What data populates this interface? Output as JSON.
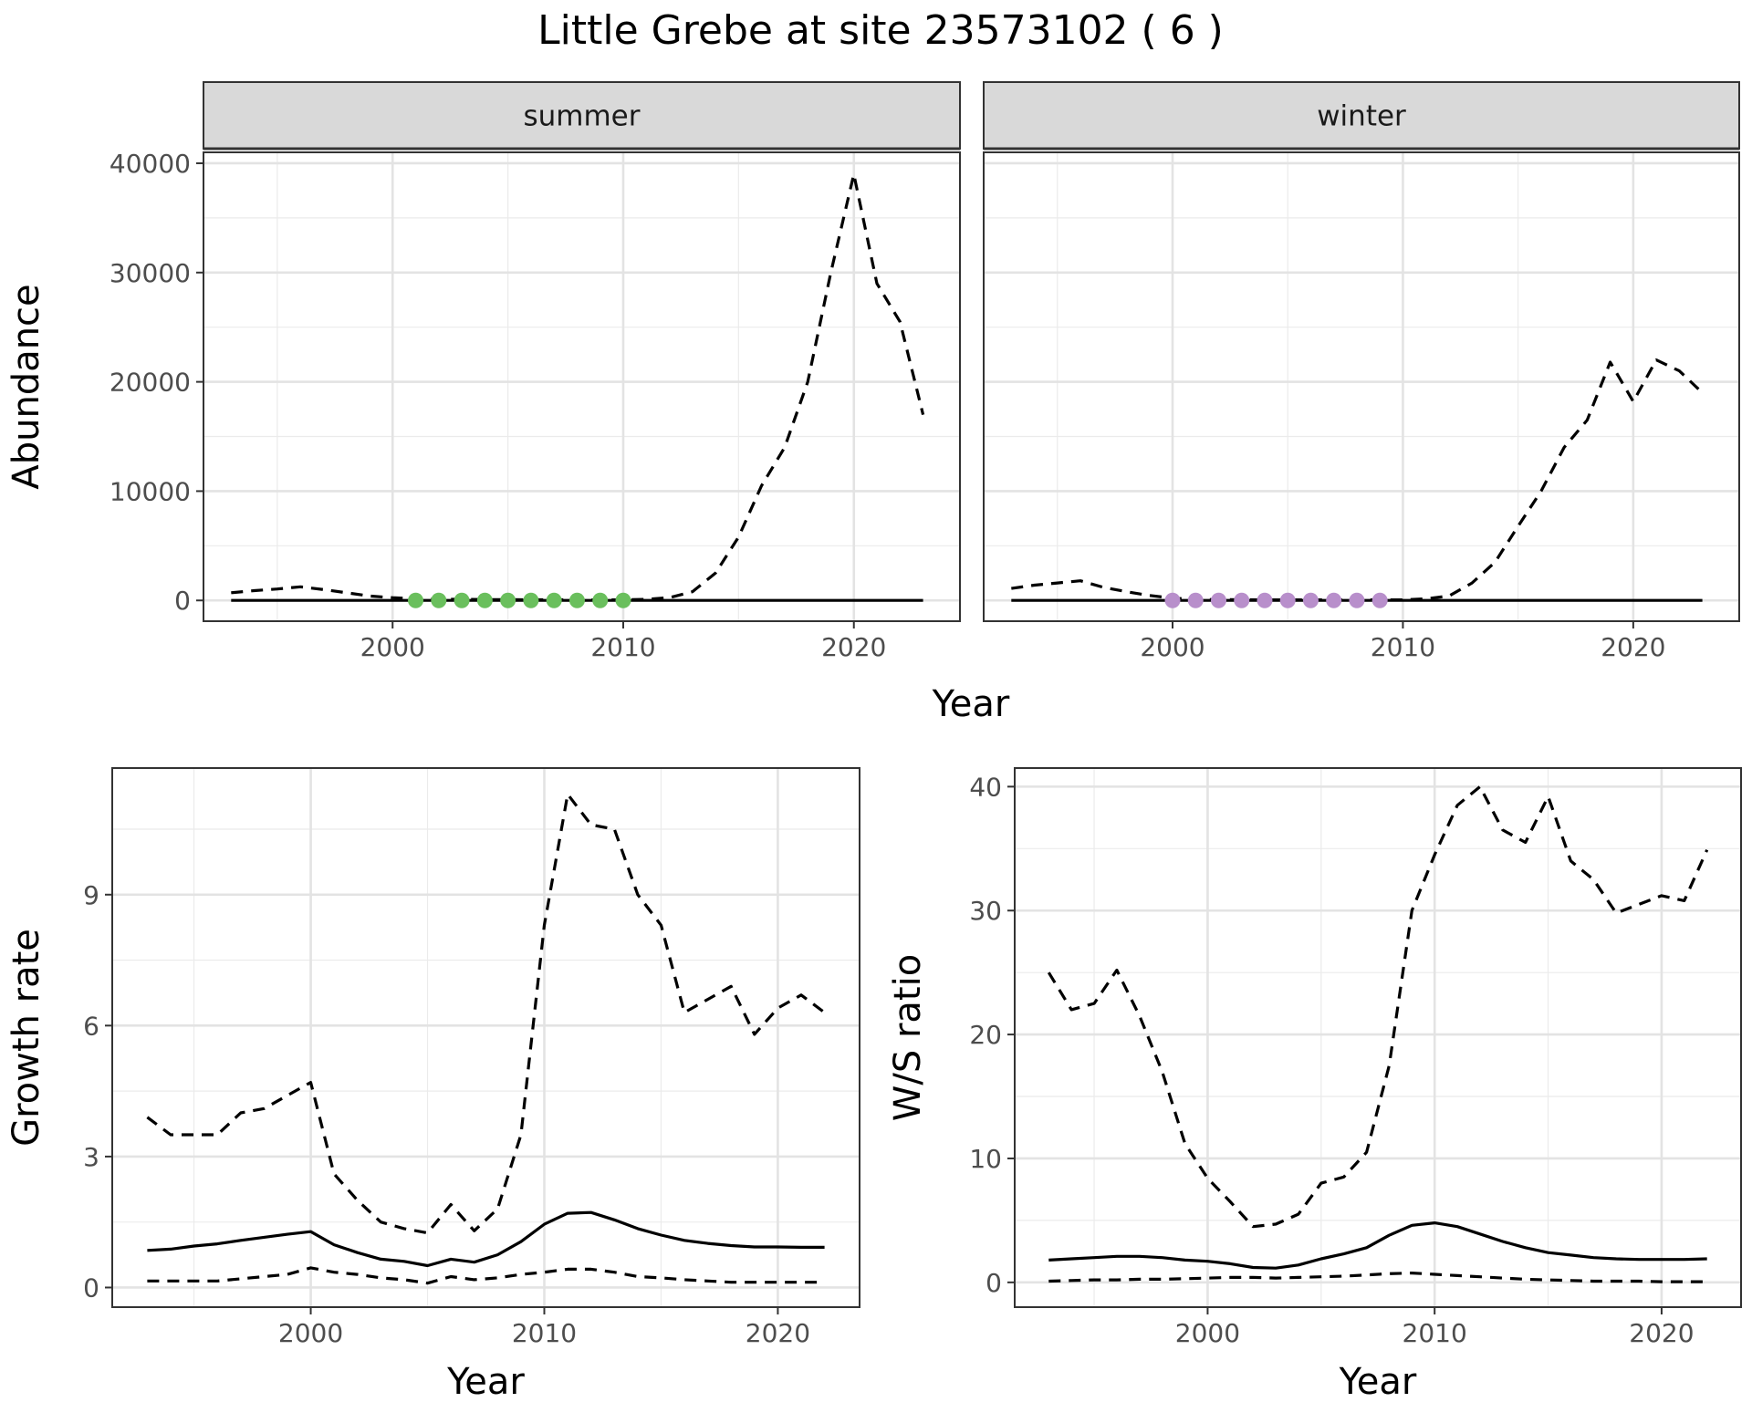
{
  "title": "Little Grebe at site 23573102 ( 6 )",
  "colors": {
    "summer_points": "#6abf5d",
    "winter_points": "#b88fcb",
    "line": "#000000"
  },
  "chart_data": [
    {
      "type": "line",
      "facet": "summer",
      "xlabel": "Year",
      "ylabel": "Abundance",
      "x_ticks": [
        2000,
        2010,
        2020
      ],
      "y_ticks": [
        0,
        10000,
        20000,
        30000,
        40000
      ],
      "xlim": [
        1991.8,
        2024.6
      ],
      "ylim": [
        -1900,
        41000
      ],
      "grid": true,
      "series": [
        {
          "style": "dashed",
          "x": [
            1993,
            1994,
            1995,
            1996,
            1997,
            1998,
            1999,
            2000,
            2001,
            2002,
            2003,
            2004,
            2005,
            2006,
            2007,
            2008,
            2009,
            2010,
            2011,
            2012,
            2013,
            2014,
            2015,
            2016,
            2017,
            2018,
            2019,
            2020,
            2021,
            2022,
            2023
          ],
          "y": [
            700,
            900,
            1050,
            1250,
            1000,
            700,
            400,
            250,
            150,
            100,
            100,
            80,
            80,
            60,
            60,
            60,
            50,
            50,
            100,
            250,
            800,
            2500,
            5800,
            10500,
            14000,
            20000,
            30000,
            39000,
            29000,
            25500,
            17000
          ]
        },
        {
          "style": "solid",
          "x": [
            1993,
            2003,
            2013,
            2023
          ],
          "y": [
            0,
            0,
            0,
            0
          ]
        },
        {
          "style": "points",
          "x": [
            2001,
            2002,
            2003,
            2004,
            2005,
            2006,
            2007,
            2008,
            2009,
            2010
          ],
          "y": [
            0,
            0,
            0,
            0,
            0,
            0,
            0,
            0,
            0,
            0
          ]
        }
      ]
    },
    {
      "type": "line",
      "facet": "winter",
      "xlabel": "Year",
      "ylabel": "Abundance",
      "x_ticks": [
        2000,
        2010,
        2020
      ],
      "y_ticks": [
        0,
        10000,
        20000,
        30000,
        40000
      ],
      "xlim": [
        1991.8,
        2024.6
      ],
      "ylim": [
        -1900,
        41000
      ],
      "grid": true,
      "series": [
        {
          "style": "dashed",
          "x": [
            1993,
            1994,
            1995,
            1996,
            1997,
            1998,
            1999,
            2000,
            2001,
            2002,
            2003,
            2004,
            2005,
            2006,
            2007,
            2008,
            2009,
            2010,
            2011,
            2012,
            2013,
            2014,
            2015,
            2016,
            2017,
            2018,
            2019,
            2020,
            2021,
            2022,
            2023
          ],
          "y": [
            1100,
            1400,
            1600,
            1800,
            1200,
            800,
            450,
            200,
            100,
            80,
            60,
            50,
            50,
            50,
            50,
            50,
            50,
            50,
            150,
            400,
            1600,
            3500,
            6800,
            10000,
            14000,
            16500,
            21800,
            18200,
            22000,
            21000,
            19000
          ]
        },
        {
          "style": "solid",
          "x": [
            1993,
            2003,
            2013,
            2023
          ],
          "y": [
            0,
            0,
            0,
            0
          ]
        },
        {
          "style": "points",
          "x": [
            2000,
            2001,
            2002,
            2003,
            2004,
            2005,
            2006,
            2007,
            2008,
            2009
          ],
          "y": [
            0,
            0,
            0,
            0,
            0,
            0,
            0,
            0,
            0,
            0
          ]
        }
      ]
    },
    {
      "type": "line",
      "xlabel": "Year",
      "ylabel": "Growth rate",
      "x_ticks": [
        2000,
        2010,
        2020
      ],
      "y_ticks": [
        0,
        3,
        6,
        9
      ],
      "xlim": [
        1991.5,
        2023.5
      ],
      "ylim": [
        -0.45,
        11.9
      ],
      "grid": true,
      "series": [
        {
          "style": "dashed",
          "x": [
            1993,
            1994,
            1995,
            1996,
            1997,
            1998,
            1999,
            2000,
            2001,
            2002,
            2003,
            2004,
            2005,
            2006,
            2007,
            2008,
            2009,
            2010,
            2011,
            2012,
            2013,
            2014,
            2015,
            2016,
            2017,
            2018,
            2019,
            2020,
            2021,
            2022
          ],
          "y": [
            3.9,
            3.5,
            3.5,
            3.5,
            4.0,
            4.1,
            4.4,
            4.7,
            2.6,
            2.0,
            1.5,
            1.35,
            1.25,
            1.9,
            1.3,
            1.8,
            3.5,
            8.3,
            11.3,
            10.6,
            10.5,
            9.0,
            8.3,
            6.3,
            6.6,
            6.9,
            5.8,
            6.4,
            6.7,
            6.3
          ]
        },
        {
          "style": "solid",
          "x": [
            1993,
            1994,
            1995,
            1996,
            1997,
            1998,
            1999,
            2000,
            2001,
            2002,
            2003,
            2004,
            2005,
            2006,
            2007,
            2008,
            2009,
            2010,
            2011,
            2012,
            2013,
            2014,
            2015,
            2016,
            2017,
            2018,
            2019,
            2020,
            2021,
            2022
          ],
          "y": [
            0.85,
            0.88,
            0.95,
            1.0,
            1.08,
            1.15,
            1.22,
            1.28,
            0.98,
            0.8,
            0.65,
            0.6,
            0.5,
            0.65,
            0.58,
            0.75,
            1.05,
            1.45,
            1.7,
            1.72,
            1.55,
            1.35,
            1.2,
            1.08,
            1.01,
            0.96,
            0.93,
            0.93,
            0.92,
            0.92
          ]
        },
        {
          "style": "dashed",
          "x": [
            1993,
            1994,
            1995,
            1996,
            1997,
            1998,
            1999,
            2000,
            2001,
            2002,
            2003,
            2004,
            2005,
            2006,
            2007,
            2008,
            2009,
            2010,
            2011,
            2012,
            2013,
            2014,
            2015,
            2016,
            2017,
            2018,
            2019,
            2020,
            2021,
            2022
          ],
          "y": [
            0.15,
            0.15,
            0.15,
            0.15,
            0.2,
            0.25,
            0.3,
            0.45,
            0.35,
            0.3,
            0.22,
            0.18,
            0.1,
            0.25,
            0.18,
            0.22,
            0.3,
            0.35,
            0.42,
            0.42,
            0.35,
            0.25,
            0.22,
            0.18,
            0.15,
            0.12,
            0.12,
            0.12,
            0.12,
            0.12
          ]
        }
      ]
    },
    {
      "type": "line",
      "xlabel": "Year",
      "ylabel": "W/S ratio",
      "x_ticks": [
        2000,
        2010,
        2020
      ],
      "y_ticks": [
        0,
        10,
        20,
        30,
        40
      ],
      "xlim": [
        1991.5,
        2023.5
      ],
      "ylim": [
        -2,
        41.5
      ],
      "grid": true,
      "series": [
        {
          "style": "dashed",
          "x": [
            1993,
            1994,
            1995,
            1996,
            1997,
            1998,
            1999,
            2000,
            2001,
            2002,
            2003,
            2004,
            2005,
            2006,
            2007,
            2008,
            2009,
            2010,
            2011,
            2012,
            2013,
            2014,
            2015,
            2016,
            2017,
            2018,
            2019,
            2020,
            2021,
            2022
          ],
          "y": [
            25,
            22,
            22.5,
            25.2,
            21.5,
            17,
            11.2,
            8.4,
            6.5,
            4.5,
            4.7,
            5.5,
            8.0,
            8.5,
            10.5,
            17.5,
            30,
            34.5,
            38.5,
            40,
            36.5,
            35.5,
            39.2,
            34,
            32.5,
            29.8,
            30.5,
            31.2,
            30.8,
            34.9
          ]
        },
        {
          "style": "solid",
          "x": [
            1993,
            1994,
            1995,
            1996,
            1997,
            1998,
            1999,
            2000,
            2001,
            2002,
            2003,
            2004,
            2005,
            2006,
            2007,
            2008,
            2009,
            2010,
            2011,
            2012,
            2013,
            2014,
            2015,
            2016,
            2017,
            2018,
            2019,
            2020,
            2021,
            2022
          ],
          "y": [
            1.8,
            1.9,
            2.0,
            2.1,
            2.1,
            2.0,
            1.8,
            1.7,
            1.5,
            1.2,
            1.15,
            1.4,
            1.9,
            2.3,
            2.8,
            3.8,
            4.6,
            4.8,
            4.5,
            3.9,
            3.3,
            2.8,
            2.4,
            2.2,
            2.0,
            1.9,
            1.85,
            1.85,
            1.85,
            1.9
          ]
        },
        {
          "style": "dashed",
          "x": [
            1993,
            1994,
            1995,
            1996,
            1997,
            1998,
            1999,
            2000,
            2001,
            2002,
            2003,
            2004,
            2005,
            2006,
            2007,
            2008,
            2009,
            2010,
            2011,
            2012,
            2013,
            2014,
            2015,
            2016,
            2017,
            2018,
            2019,
            2020,
            2021,
            2022
          ],
          "y": [
            0.1,
            0.15,
            0.2,
            0.2,
            0.25,
            0.25,
            0.3,
            0.35,
            0.4,
            0.4,
            0.35,
            0.4,
            0.45,
            0.5,
            0.6,
            0.7,
            0.75,
            0.65,
            0.55,
            0.45,
            0.35,
            0.25,
            0.2,
            0.15,
            0.1,
            0.1,
            0.1,
            0.05,
            0.05,
            0.05
          ]
        }
      ]
    }
  ]
}
